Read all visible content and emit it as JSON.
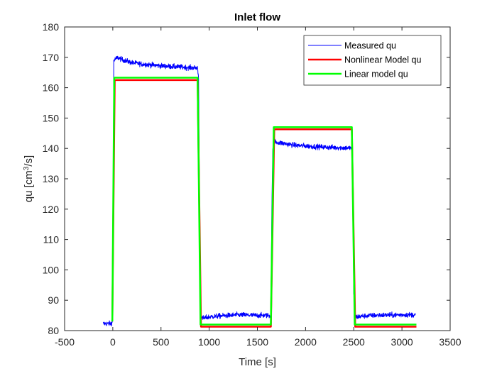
{
  "chart_data": {
    "type": "line",
    "title": "Inlet flow",
    "xlabel": "Time [s]",
    "ylabel_parts": {
      "pre": "qu [cm",
      "sup": "3",
      "post": "/s]"
    },
    "xlim": [
      -500,
      3500
    ],
    "ylim": [
      80,
      180
    ],
    "xticks": [
      -500,
      0,
      500,
      1000,
      1500,
      2000,
      2500,
      3000,
      3500
    ],
    "yticks": [
      80,
      90,
      100,
      110,
      120,
      130,
      140,
      150,
      160,
      170,
      180
    ],
    "xtick_labels": [
      "-500",
      "0",
      "500",
      "1000",
      "1500",
      "2000",
      "2500",
      "3000",
      "3500"
    ],
    "ytick_labels": [
      "80",
      "90",
      "100",
      "110",
      "120",
      "130",
      "140",
      "150",
      "160",
      "170",
      "180"
    ],
    "grid": false,
    "legend_position": "top-right",
    "series": [
      {
        "name": "Measured qu",
        "color": "#0000ff",
        "line_width": 1,
        "noise": 0.6,
        "x": [
          -100,
          -20,
          -5,
          0,
          10,
          50,
          100,
          200,
          300,
          400,
          500,
          600,
          700,
          800,
          880,
          890,
          900,
          915,
          930,
          1000,
          1100,
          1200,
          1300,
          1400,
          1500,
          1600,
          1640,
          1650,
          1660,
          1670,
          1700,
          1800,
          1900,
          2000,
          2100,
          2200,
          2300,
          2400,
          2480,
          2490,
          2500,
          2520,
          2550,
          2600,
          2700,
          2800,
          2900,
          3000,
          3100,
          3140
        ],
        "y": [
          82.3,
          82.3,
          82.8,
          84,
          169,
          169.9,
          169.2,
          168.2,
          167.8,
          167.5,
          167.2,
          167,
          166.8,
          166.6,
          166.5,
          163,
          120,
          84.5,
          84,
          84.5,
          84.8,
          85,
          85.2,
          85.1,
          85,
          85,
          84.8,
          120,
          140,
          142.4,
          142,
          141.5,
          141,
          140.8,
          140.6,
          140.4,
          140.3,
          140.2,
          140.1,
          125,
          92,
          84.5,
          84.6,
          84.8,
          85,
          85.1,
          85.1,
          85.2,
          85.2,
          85.2
        ]
      },
      {
        "name": "Nonlinear Model qu",
        "color": "#ff0000",
        "line_width": 2.5,
        "x": [
          -5,
          20,
          880,
          915,
          1640,
          1675,
          2480,
          2515,
          3150
        ],
        "y": [
          83,
          162.5,
          162.5,
          81.3,
          81.3,
          146.3,
          146.3,
          81.3,
          81.3
        ]
      },
      {
        "name": "Linear model qu",
        "color": "#00ff00",
        "line_width": 2.5,
        "x": [
          -5,
          15,
          880,
          910,
          1640,
          1670,
          2480,
          2510,
          3150
        ],
        "y": [
          83,
          163.3,
          163.3,
          82,
          82,
          147,
          147,
          82,
          82
        ]
      }
    ]
  }
}
